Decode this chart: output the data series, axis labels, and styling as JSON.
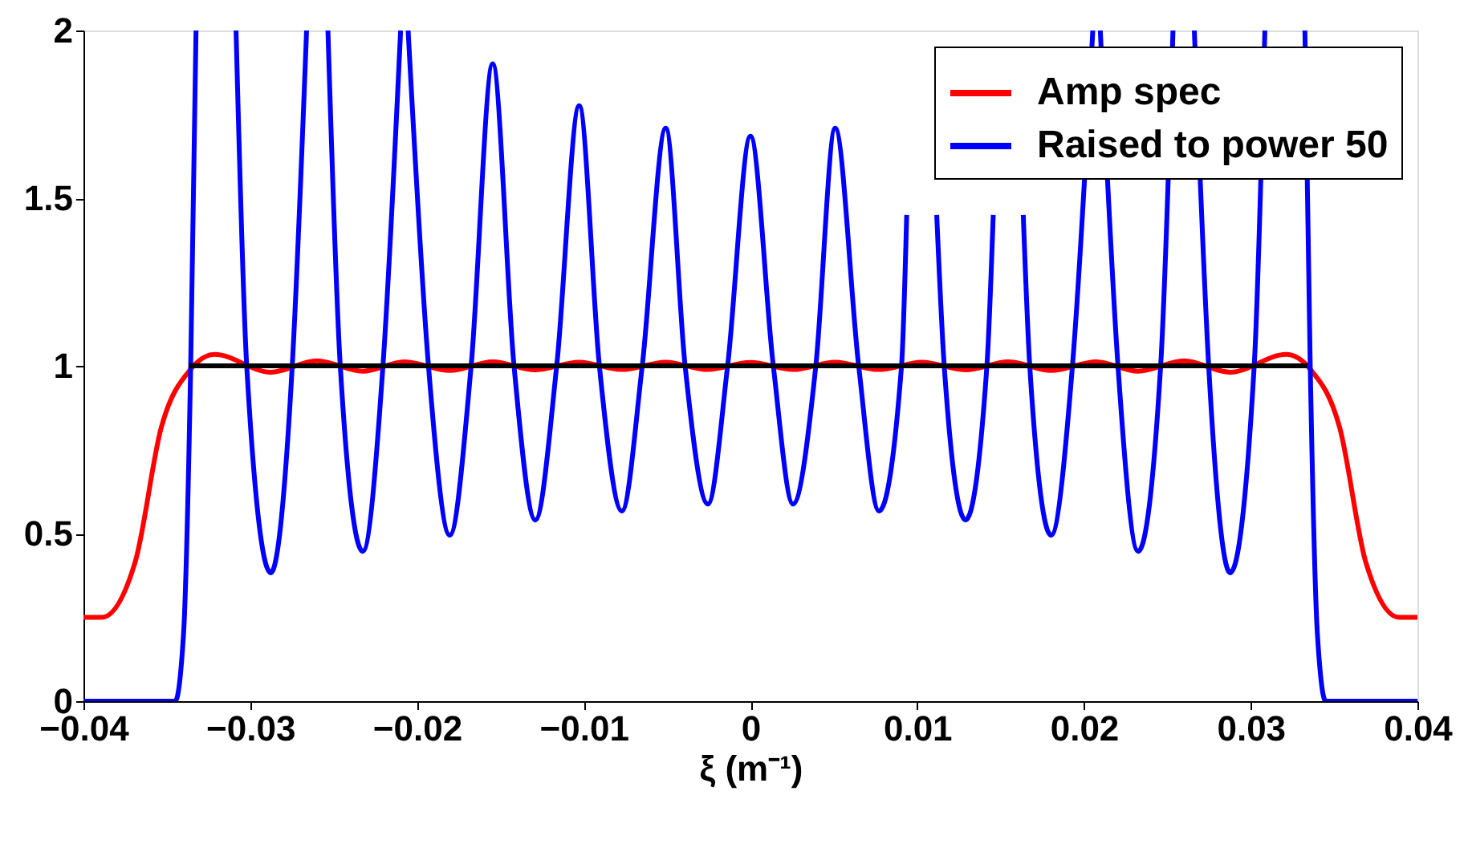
{
  "chart_data": {
    "type": "line",
    "xlabel": "ξ (m⁻¹)",
    "xlim": [
      -0.04,
      0.04
    ],
    "xticks": [
      -0.04,
      -0.03,
      -0.02,
      -0.01,
      0,
      0.01,
      0.02,
      0.03,
      0.04
    ],
    "ylim": [
      0,
      2
    ],
    "yticks": [
      0,
      0.5,
      1,
      1.5,
      2
    ],
    "grid": false,
    "legend": "top right",
    "line_style": "solid",
    "marker": "none",
    "series": [
      {
        "name": "Amp spec",
        "color": "#ff0000",
        "x": [
          -0.04,
          -0.0389,
          -0.0369,
          -0.03534,
          -0.03357,
          -0.03213,
          -0.02877,
          -0.026,
          -0.02325,
          -0.02075,
          -0.01803,
          -0.01546,
          -0.0129,
          -0.01027,
          -0.00771,
          -0.00508,
          -0.00255,
          0,
          0.00255,
          0.00508,
          0.00771,
          0.01027,
          0.0129,
          0.01546,
          0.01803,
          0.02075,
          0.02325,
          0.026,
          0.02877,
          0.03213,
          0.03357,
          0.03534,
          0.0369,
          0.0389,
          0.04
        ],
        "values": [
          0.25,
          0.25,
          0.415,
          0.815,
          0.99,
          1.034,
          0.981,
          1.015,
          0.984,
          1.012,
          0.986,
          1.012,
          0.988,
          1.011,
          0.989,
          1.011,
          0.989,
          1.01,
          0.989,
          1.011,
          0.989,
          1.011,
          0.988,
          1.012,
          0.986,
          1.012,
          0.984,
          1.015,
          0.981,
          1.034,
          0.99,
          0.815,
          0.415,
          0.25,
          0.25
        ]
      },
      {
        "name": "Raised to power 50",
        "color": "#0000ff",
        "x": [
          -0.04,
          -0.0345,
          -0.034,
          -0.03357,
          -0.03325,
          -0.0321,
          -0.03085,
          -0.03021,
          -0.02877,
          -0.02748,
          -0.02662,
          -0.026,
          -0.02534,
          -0.0246,
          -0.02325,
          -0.02204,
          -0.02098,
          -0.02075,
          -0.02053,
          -0.01931,
          -0.01803,
          -0.01675,
          -0.01546,
          -0.01418,
          -0.0129,
          -0.01162,
          -0.01027,
          -0.00906,
          -0.00771,
          -0.00649,
          -0.00508,
          -0.00392,
          -0.00255,
          -0.00137,
          0,
          0.00137,
          0.00255,
          0.00392,
          0.00508,
          0.00649,
          0.00771,
          0.00906,
          0.00937,
          0.01027,
          0.01117,
          0.01162,
          0.0129,
          0.01418,
          0.01456,
          0.01546,
          0.01636,
          0.01675,
          0.01803,
          0.01931,
          0.02053,
          0.02075,
          0.02098,
          0.02204,
          0.02325,
          0.0246,
          0.02534,
          0.026,
          0.02662,
          0.02748,
          0.02877,
          0.03021,
          0.03085,
          0.0321,
          0.03325,
          0.03357,
          0.034,
          0.0345,
          0.04
        ],
        "values": [
          0,
          0,
          0.2,
          1,
          2,
          null,
          2,
          1,
          0.383,
          1,
          2,
          null,
          2,
          1,
          0.447,
          1,
          2,
          null,
          2,
          1,
          0.495,
          1,
          1.901,
          1,
          0.54,
          1,
          1.776,
          1,
          0.567,
          1,
          1.709,
          1,
          0.588,
          1,
          1.685,
          1,
          0.588,
          1,
          1.709,
          1,
          0.567,
          1,
          1.45,
          null,
          1.45,
          1,
          0.54,
          1,
          1.45,
          null,
          1.45,
          1,
          0.495,
          1,
          2,
          null,
          2,
          1,
          0.447,
          1,
          2,
          null,
          2,
          1,
          0.383,
          1,
          2,
          null,
          2,
          1,
          0.2,
          0,
          0
        ]
      },
      {
        "color": "#000000",
        "x": [
          -0.03367,
          0.03341
        ],
        "values": [
          1,
          1
        ]
      }
    ]
  }
}
